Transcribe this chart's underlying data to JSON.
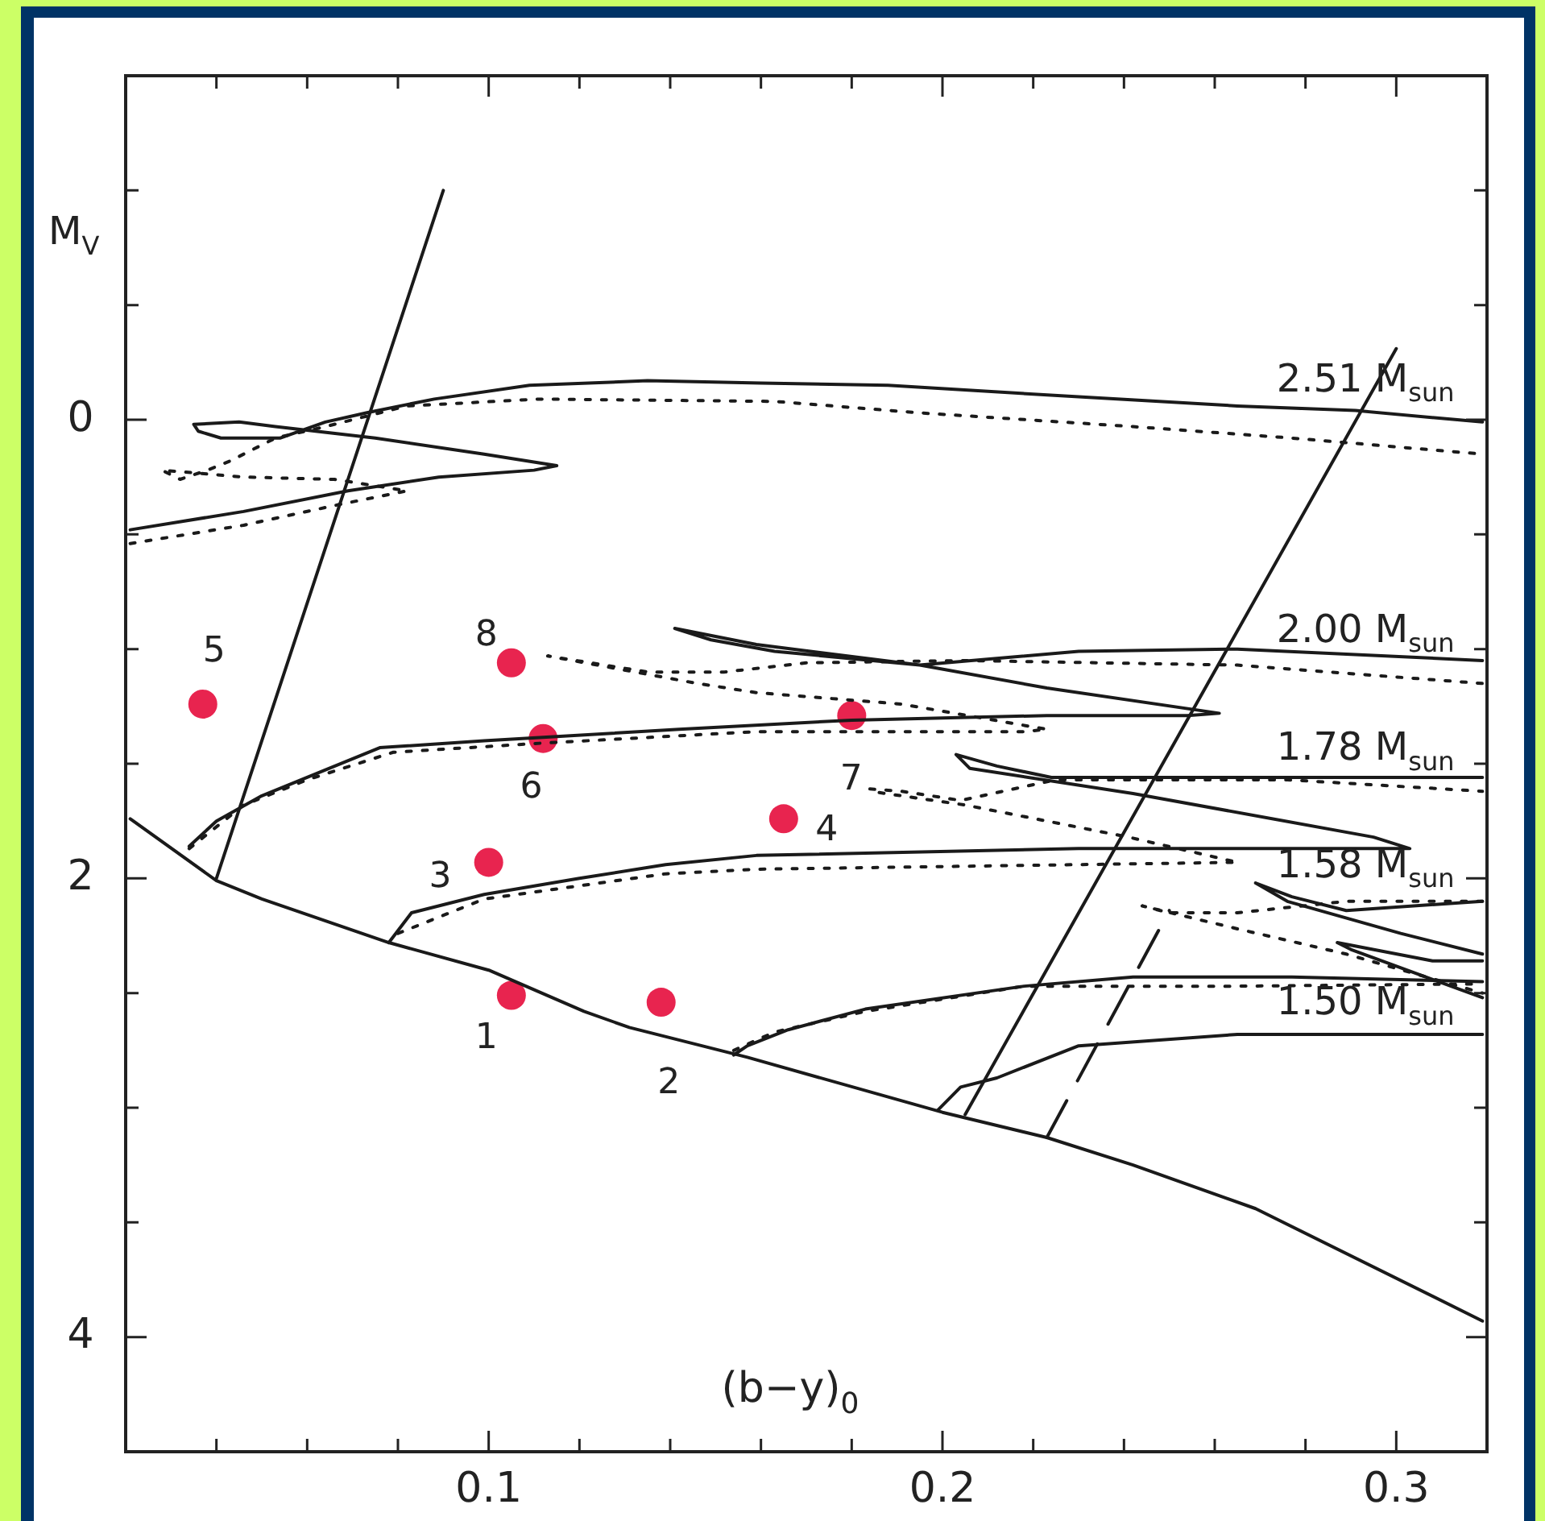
{
  "chart_data": {
    "type": "line",
    "xlabel": "(b−y)$_{0}$",
    "ylabel": "M$_{V}$",
    "xlim": [
      0.02,
      0.32
    ],
    "ylim": [
      4.5,
      -1.5
    ],
    "xticks": [
      {
        "value": 0.04,
        "label": null
      },
      {
        "value": 0.06,
        "label": null
      },
      {
        "value": 0.08,
        "label": null
      },
      0.1,
      {
        "value": 0.12,
        "label": null
      },
      {
        "value": 0.14,
        "label": null
      },
      {
        "value": 0.16,
        "label": null
      },
      {
        "value": 0.18,
        "label": null
      },
      0.2,
      {
        "value": 0.22,
        "label": null
      },
      {
        "value": 0.24,
        "label": null
      },
      {
        "value": 0.26,
        "label": null
      },
      {
        "value": 0.28,
        "label": null
      },
      0.3
    ],
    "yticks": [
      {
        "value": -1,
        "label": null
      },
      {
        "value": -0.5,
        "label": null
      },
      0,
      {
        "value": 0.5,
        "label": null
      },
      {
        "value": 1,
        "label": null
      },
      {
        "value": 1.5,
        "label": null
      },
      2,
      {
        "value": 2.5,
        "label": null
      },
      {
        "value": 3,
        "label": null
      },
      {
        "value": 3.5,
        "label": null
      },
      4
    ],
    "legend": false,
    "grid": false,
    "series": [
      {
        "type": "line",
        "line_style": "solid",
        "color": "#1a1a1a",
        "x": [
          0.021,
          0.04,
          0.05,
          0.078,
          0.1,
          0.121,
          0.131,
          0.157,
          0.2,
          0.223,
          0.242,
          0.269,
          0.319
        ],
        "values": [
          1.74,
          2.01,
          2.09,
          2.28,
          2.4,
          2.58,
          2.65,
          2.78,
          3.02,
          3.13,
          3.25,
          3.44,
          3.93
        ]
      },
      {
        "type": "line",
        "line_style": "solid",
        "color": "#1a1a1a",
        "x": [
          0.04,
          0.09
        ],
        "values": [
          2.0,
          -1.0
        ]
      },
      {
        "type": "line",
        "line_style": "solid",
        "color": "#1a1a1a",
        "x": [
          0.205,
          0.3
        ],
        "values": [
          3.03,
          -0.31
        ]
      },
      {
        "type": "line",
        "line_style": "dashed",
        "color": "#1a1a1a",
        "x": [
          0.223,
          0.25
        ],
        "values": [
          3.13,
          2.14
        ]
      },
      {
        "type": "line",
        "line_style": "solid",
        "color": "#1a1a1a",
        "x": [
          0.021,
          0.046,
          0.069,
          0.089,
          0.11,
          0.115,
          0.099,
          0.075,
          0.053,
          0.045,
          0.035,
          0.036,
          0.041,
          0.054,
          0.064,
          0.073,
          0.088,
          0.109,
          0.135,
          0.16,
          0.188,
          0.23,
          0.265,
          0.291,
          0.319
        ],
        "values": [
          0.48,
          0.4,
          0.31,
          0.25,
          0.22,
          0.2,
          0.15,
          0.08,
          0.03,
          0.01,
          0.02,
          0.05,
          0.08,
          0.08,
          0.01,
          -0.03,
          -0.09,
          -0.15,
          -0.17,
          -0.16,
          -0.15,
          -0.1,
          -0.06,
          -0.04,
          0.01
        ]
      },
      {
        "type": "line",
        "line_style": "dotted",
        "color": "#1a1a1a",
        "x": [
          0.021,
          0.046,
          0.067,
          0.082,
          0.066,
          0.046,
          0.028,
          0.032,
          0.038,
          0.043,
          0.053,
          0.064,
          0.082,
          0.111,
          0.163,
          0.195,
          0.242,
          0.277,
          0.319
        ],
        "values": [
          0.54,
          0.46,
          0.37,
          0.31,
          0.26,
          0.25,
          0.22,
          0.26,
          0.22,
          0.18,
          0.08,
          0.03,
          -0.06,
          -0.09,
          -0.08,
          -0.03,
          0.03,
          0.08,
          0.15
        ]
      },
      {
        "type": "line",
        "line_style": "solid",
        "color": "#1a1a1a",
        "x": [
          0.034,
          0.04,
          0.05,
          0.076,
          0.099,
          0.142,
          0.18,
          0.223,
          0.254,
          0.261,
          0.223,
          0.195,
          0.159,
          0.141,
          0.149,
          0.163,
          0.195,
          0.23,
          0.265,
          0.319
        ],
        "values": [
          1.86,
          1.75,
          1.64,
          1.43,
          1.4,
          1.35,
          1.31,
          1.29,
          1.29,
          1.28,
          1.17,
          1.07,
          0.98,
          0.91,
          0.96,
          1.01,
          1.07,
          1.01,
          1.0,
          1.05
        ]
      },
      {
        "type": "line",
        "line_style": "dotted",
        "color": "#1a1a1a",
        "x": [
          0.034,
          0.046,
          0.06,
          0.079,
          0.112,
          0.159,
          0.218,
          0.223,
          0.191,
          0.159,
          0.146,
          0.135,
          0.113,
          0.135,
          0.152,
          0.17,
          0.205,
          0.265,
          0.319
        ],
        "values": [
          1.87,
          1.68,
          1.57,
          1.45,
          1.41,
          1.36,
          1.36,
          1.35,
          1.24,
          1.19,
          1.15,
          1.11,
          1.03,
          1.1,
          1.1,
          1.06,
          1.05,
          1.07,
          1.15
        ]
      },
      {
        "type": "line",
        "line_style": "solid",
        "color": "#1a1a1a",
        "x": [
          0.078,
          0.083,
          0.099,
          0.12,
          0.139,
          0.159,
          0.23,
          0.289,
          0.303,
          0.295,
          0.242,
          0.206,
          0.203,
          0.212,
          0.224,
          0.265,
          0.319
        ],
        "values": [
          2.28,
          2.15,
          2.07,
          2.0,
          1.94,
          1.9,
          1.87,
          1.87,
          1.87,
          1.82,
          1.63,
          1.52,
          1.46,
          1.51,
          1.56,
          1.56,
          1.56
        ]
      },
      {
        "type": "line",
        "line_style": "dotted",
        "color": "#1a1a1a",
        "x": [
          0.08,
          0.099,
          0.139,
          0.159,
          0.265,
          0.241,
          0.205,
          0.184
        ],
        "values": [
          2.24,
          2.09,
          1.98,
          1.96,
          1.93,
          1.82,
          1.68,
          1.62
        ]
      },
      {
        "type": "line",
        "line_style": "dotted",
        "color": "#1a1a1a",
        "x": [
          0.184,
          0.191,
          0.204,
          0.225,
          0.276,
          0.319
        ],
        "values": [
          1.61,
          1.62,
          1.66,
          1.57,
          1.57,
          1.62
        ]
      },
      {
        "type": "line",
        "line_style": "solid",
        "color": "#1a1a1a",
        "x": [
          0.154,
          0.157,
          0.166,
          0.183,
          0.218,
          0.242,
          0.277,
          0.319
        ],
        "values": [
          2.77,
          2.73,
          2.66,
          2.57,
          2.47,
          2.43,
          2.43,
          2.45
        ]
      },
      {
        "type": "line",
        "line_style": "dotted",
        "color": "#1a1a1a",
        "x": [
          0.154,
          0.163,
          0.183,
          0.218,
          0.265,
          0.319
        ],
        "values": [
          2.75,
          2.67,
          2.58,
          2.47,
          2.47,
          2.46
        ]
      },
      {
        "type": "line",
        "line_style": "solid",
        "color": "#1a1a1a",
        "x": [
          0.199,
          0.204,
          0.212,
          0.23,
          0.265,
          0.319
        ],
        "values": [
          3.01,
          2.91,
          2.87,
          2.73,
          2.68,
          2.68
        ]
      },
      {
        "type": "line",
        "line_style": "solid",
        "color": "#1a1a1a",
        "x": [
          0.319,
          0.289,
          0.277,
          0.269,
          0.276,
          0.301,
          0.319
        ],
        "values": [
          2.1,
          2.14,
          2.08,
          2.02,
          2.1,
          2.24,
          2.33
        ]
      },
      {
        "type": "line",
        "line_style": "solid",
        "color": "#1a1a1a",
        "x": [
          0.319,
          0.308,
          0.287,
          0.29,
          0.319
        ],
        "values": [
          2.36,
          2.36,
          2.28,
          2.31,
          2.52
        ]
      },
      {
        "type": "line",
        "line_style": "dotted",
        "color": "#1a1a1a",
        "x": [
          0.319,
          0.289,
          0.265,
          0.25,
          0.244,
          0.265,
          0.289,
          0.319
        ],
        "values": [
          2.1,
          2.1,
          2.15,
          2.15,
          2.12,
          2.22,
          2.33,
          2.5
        ]
      },
      {
        "type": "scatter",
        "marker": "circle",
        "color": "#e8244f",
        "x": [
          0.105,
          0.138,
          0.1,
          0.165,
          0.037,
          0.112,
          0.18,
          0.105
        ],
        "values": [
          2.51,
          2.54,
          1.93,
          1.74,
          1.24,
          1.39,
          1.29,
          1.06
        ]
      }
    ],
    "annotations": [
      "1",
      "2",
      "3",
      "4",
      "5",
      "6",
      "7",
      "8",
      "2.51 M$_{sun}$",
      "2.00 M$_{sun}$",
      "1.78 M$_{sun}$",
      "1.58 M$_{sun}$",
      "1.50 M$_{sun}$"
    ]
  }
}
